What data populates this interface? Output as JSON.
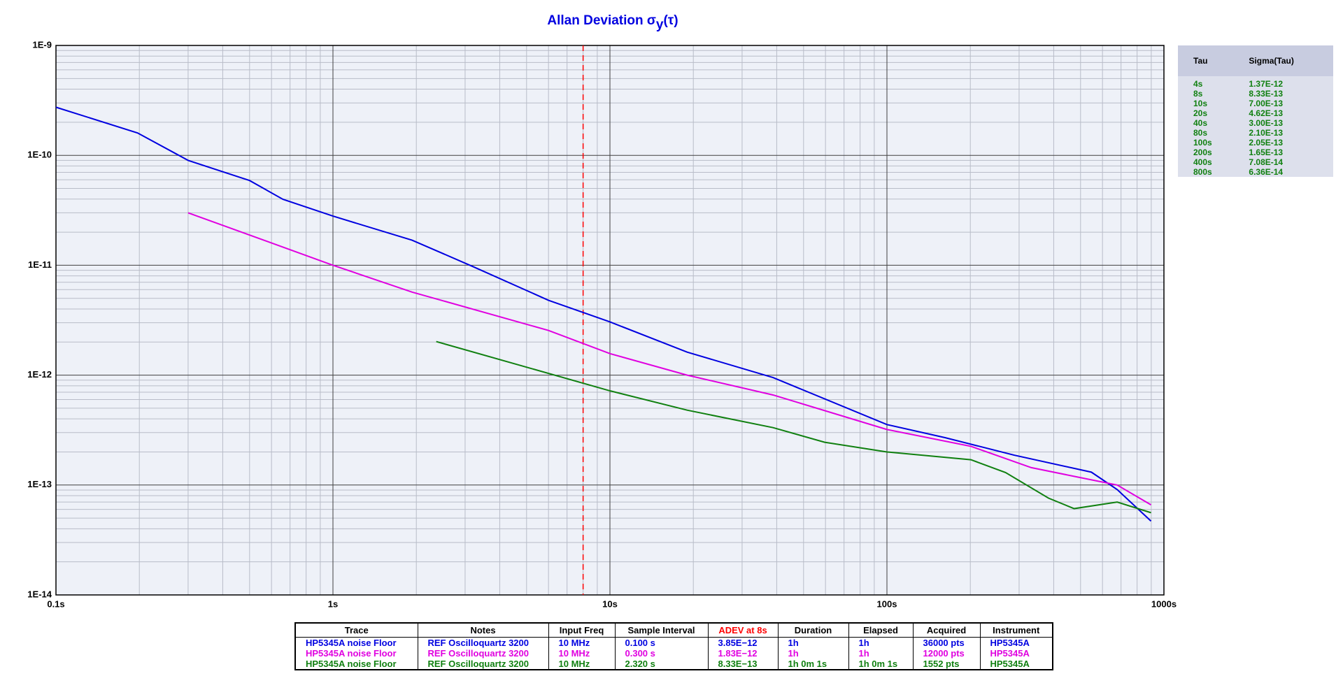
{
  "chart_data": {
    "type": "line",
    "title": [
      "Allan Deviation σ",
      "y",
      "(τ)"
    ],
    "log_x": true,
    "log_y": true,
    "grid": true,
    "xlim": [
      0.1,
      1000
    ],
    "ylim": [
      1e-14,
      1e-09
    ],
    "xticks": [
      {
        "value": 0.1,
        "label": "0.1s"
      },
      {
        "value": 1,
        "label": "1s"
      },
      {
        "value": 10,
        "label": "10s"
      },
      {
        "value": 100,
        "label": "100s"
      },
      {
        "value": 1000,
        "label": "1000s"
      }
    ],
    "yticks": [
      {
        "value": 1e-14,
        "label": "1E-14"
      },
      {
        "value": 1e-13,
        "label": "1E-13"
      },
      {
        "value": 1e-12,
        "label": "1E-12"
      },
      {
        "value": 1e-11,
        "label": "1E-11"
      },
      {
        "value": 1e-10,
        "label": "1E-10"
      },
      {
        "value": 1e-09,
        "label": "1E-9"
      }
    ],
    "marker_line": {
      "x": 8,
      "color": "#ff0000"
    },
    "series": [
      {
        "name": "HP5345A noise Floor",
        "color": "#0000e0",
        "x": [
          0.1,
          0.197,
          0.3,
          0.5,
          0.66,
          1,
          1.93,
          3.18,
          6.0,
          10,
          19,
          38.8,
          100,
          162,
          288,
          547,
          678,
          898
        ],
        "values": [
          2.74e-10,
          1.6e-10,
          9e-11,
          5.9e-11,
          3.98e-11,
          2.8e-11,
          1.69e-11,
          9.8e-12,
          4.8e-12,
          3.05e-12,
          1.62e-12,
          9.5e-13,
          3.55e-13,
          2.7e-13,
          1.87e-13,
          1.31e-13,
          9.1e-14,
          4.7e-14
        ]
      },
      {
        "name": "HP5345A noise Floor",
        "color": "#e000e0",
        "x": [
          0.3,
          1,
          1.93,
          6.0,
          10,
          19,
          38.8,
          100,
          201,
          332,
          474,
          678,
          898
        ],
        "values": [
          3e-11,
          1e-11,
          5.7e-12,
          2.55e-12,
          1.57e-12,
          1e-12,
          6.6e-13,
          3.2e-13,
          2.25e-13,
          1.44e-13,
          1.2e-13,
          1e-13,
          6.6e-14
        ]
      },
      {
        "name": "HP5345A noise Floor",
        "color": "#108010",
        "x": [
          2.36,
          10,
          19,
          38.8,
          59.6,
          100,
          201,
          268,
          383,
          474,
          678,
          898
        ],
        "values": [
          2.02e-12,
          7.2e-13,
          4.8e-13,
          3.33e-13,
          2.45e-13,
          2e-13,
          1.7e-13,
          1.3e-13,
          7.6e-14,
          6.1e-14,
          7e-14,
          5.6e-14
        ]
      }
    ]
  },
  "side_table": {
    "header": [
      "Tau",
      "Sigma(Tau)"
    ],
    "rows": [
      [
        "4s",
        "1.37E-12"
      ],
      [
        "8s",
        "8.33E-13"
      ],
      [
        "10s",
        "7.00E-13"
      ],
      [
        "20s",
        "4.62E-13"
      ],
      [
        "40s",
        "3.00E-13"
      ],
      [
        "80s",
        "2.10E-13"
      ],
      [
        "100s",
        "2.05E-13"
      ],
      [
        "200s",
        "1.65E-13"
      ],
      [
        "400s",
        "7.08E-14"
      ],
      [
        "800s",
        "6.36E-14"
      ]
    ]
  },
  "legend_table": {
    "header": [
      "Trace",
      "Notes",
      "Input Freq",
      "Sample Interval",
      "ADEV at 8s",
      "Duration",
      "Elapsed",
      "Acquired",
      "Instrument"
    ],
    "rows": [
      [
        "HP5345A noise Floor",
        "REF Oscilloquartz 3200",
        "10 MHz",
        "0.100 s",
        "3.85E−12",
        "1h",
        "1h",
        "36000 pts",
        "HP5345A"
      ],
      [
        "HP5345A noise Floor",
        "REF Oscilloquartz 3200",
        "10 MHz",
        "0.300 s",
        "1.83E−12",
        "1h",
        "1h",
        "12000 pts",
        "HP5345A"
      ],
      [
        "HP5345A noise Floor",
        "REF Oscilloquartz 3200",
        "10 MHz",
        "2.320 s",
        "8.33E−13",
        "1h 0m 1s",
        "1h 0m 1s",
        "1552 pts",
        "HP5345A"
      ]
    ]
  }
}
